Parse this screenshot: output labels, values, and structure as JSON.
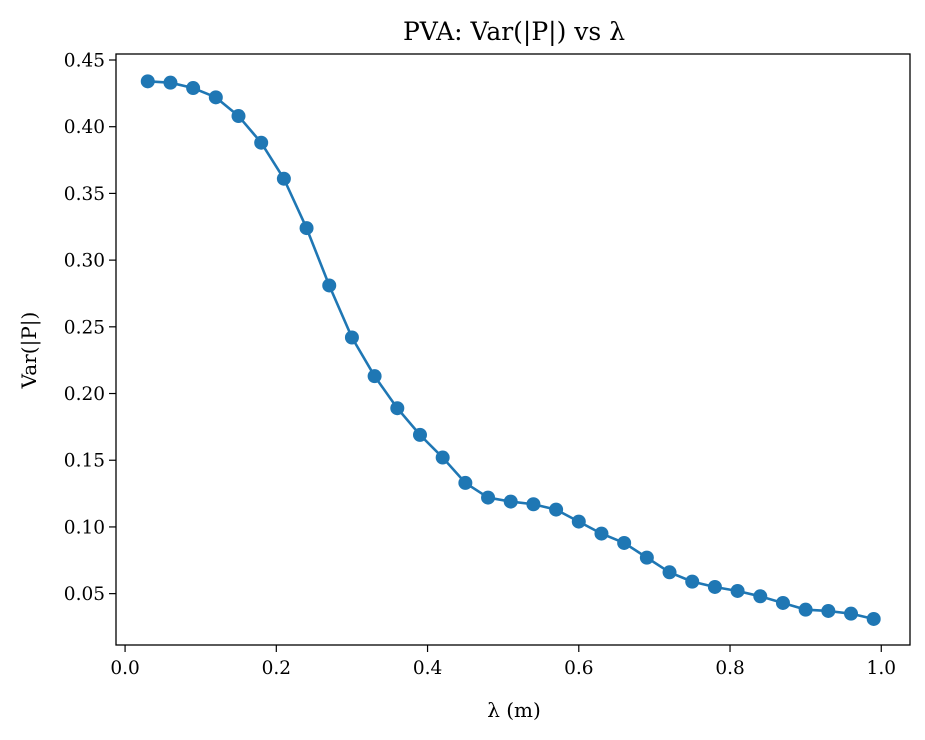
{
  "chart_data": {
    "type": "line",
    "title": "PVA: Var(|P|) vs λ",
    "xlabel": "λ (m)",
    "ylabel": "Var(|P|)",
    "xlim": [
      -0.012,
      1.038
    ],
    "ylim": [
      0.0115,
      0.4545
    ],
    "xticks": [
      0.0,
      0.2,
      0.4,
      0.6,
      0.8,
      1.0
    ],
    "xtick_labels": [
      "0.0",
      "0.2",
      "0.4",
      "0.6",
      "0.8",
      "1.0"
    ],
    "yticks": [
      0.05,
      0.1,
      0.15,
      0.2,
      0.25,
      0.3,
      0.35,
      0.4,
      0.45
    ],
    "ytick_labels": [
      "0.05",
      "0.10",
      "0.15",
      "0.20",
      "0.25",
      "0.30",
      "0.35",
      "0.40",
      "0.45"
    ],
    "grid": false,
    "color": "#1f77b4",
    "markers": true,
    "x": [
      0.03,
      0.06,
      0.09,
      0.12,
      0.15,
      0.18,
      0.21,
      0.24,
      0.27,
      0.3,
      0.33,
      0.36,
      0.39,
      0.42,
      0.45,
      0.48,
      0.51,
      0.54,
      0.57,
      0.6,
      0.63,
      0.66,
      0.69,
      0.72,
      0.75,
      0.78,
      0.81,
      0.84,
      0.87,
      0.9,
      0.93,
      0.96,
      0.99
    ],
    "y": [
      0.434,
      0.433,
      0.429,
      0.422,
      0.408,
      0.388,
      0.361,
      0.324,
      0.281,
      0.242,
      0.213,
      0.189,
      0.169,
      0.152,
      0.133,
      0.122,
      0.119,
      0.117,
      0.113,
      0.104,
      0.095,
      0.088,
      0.077,
      0.066,
      0.059,
      0.055,
      0.052,
      0.048,
      0.043,
      0.038,
      0.037,
      0.035,
      0.031
    ]
  }
}
